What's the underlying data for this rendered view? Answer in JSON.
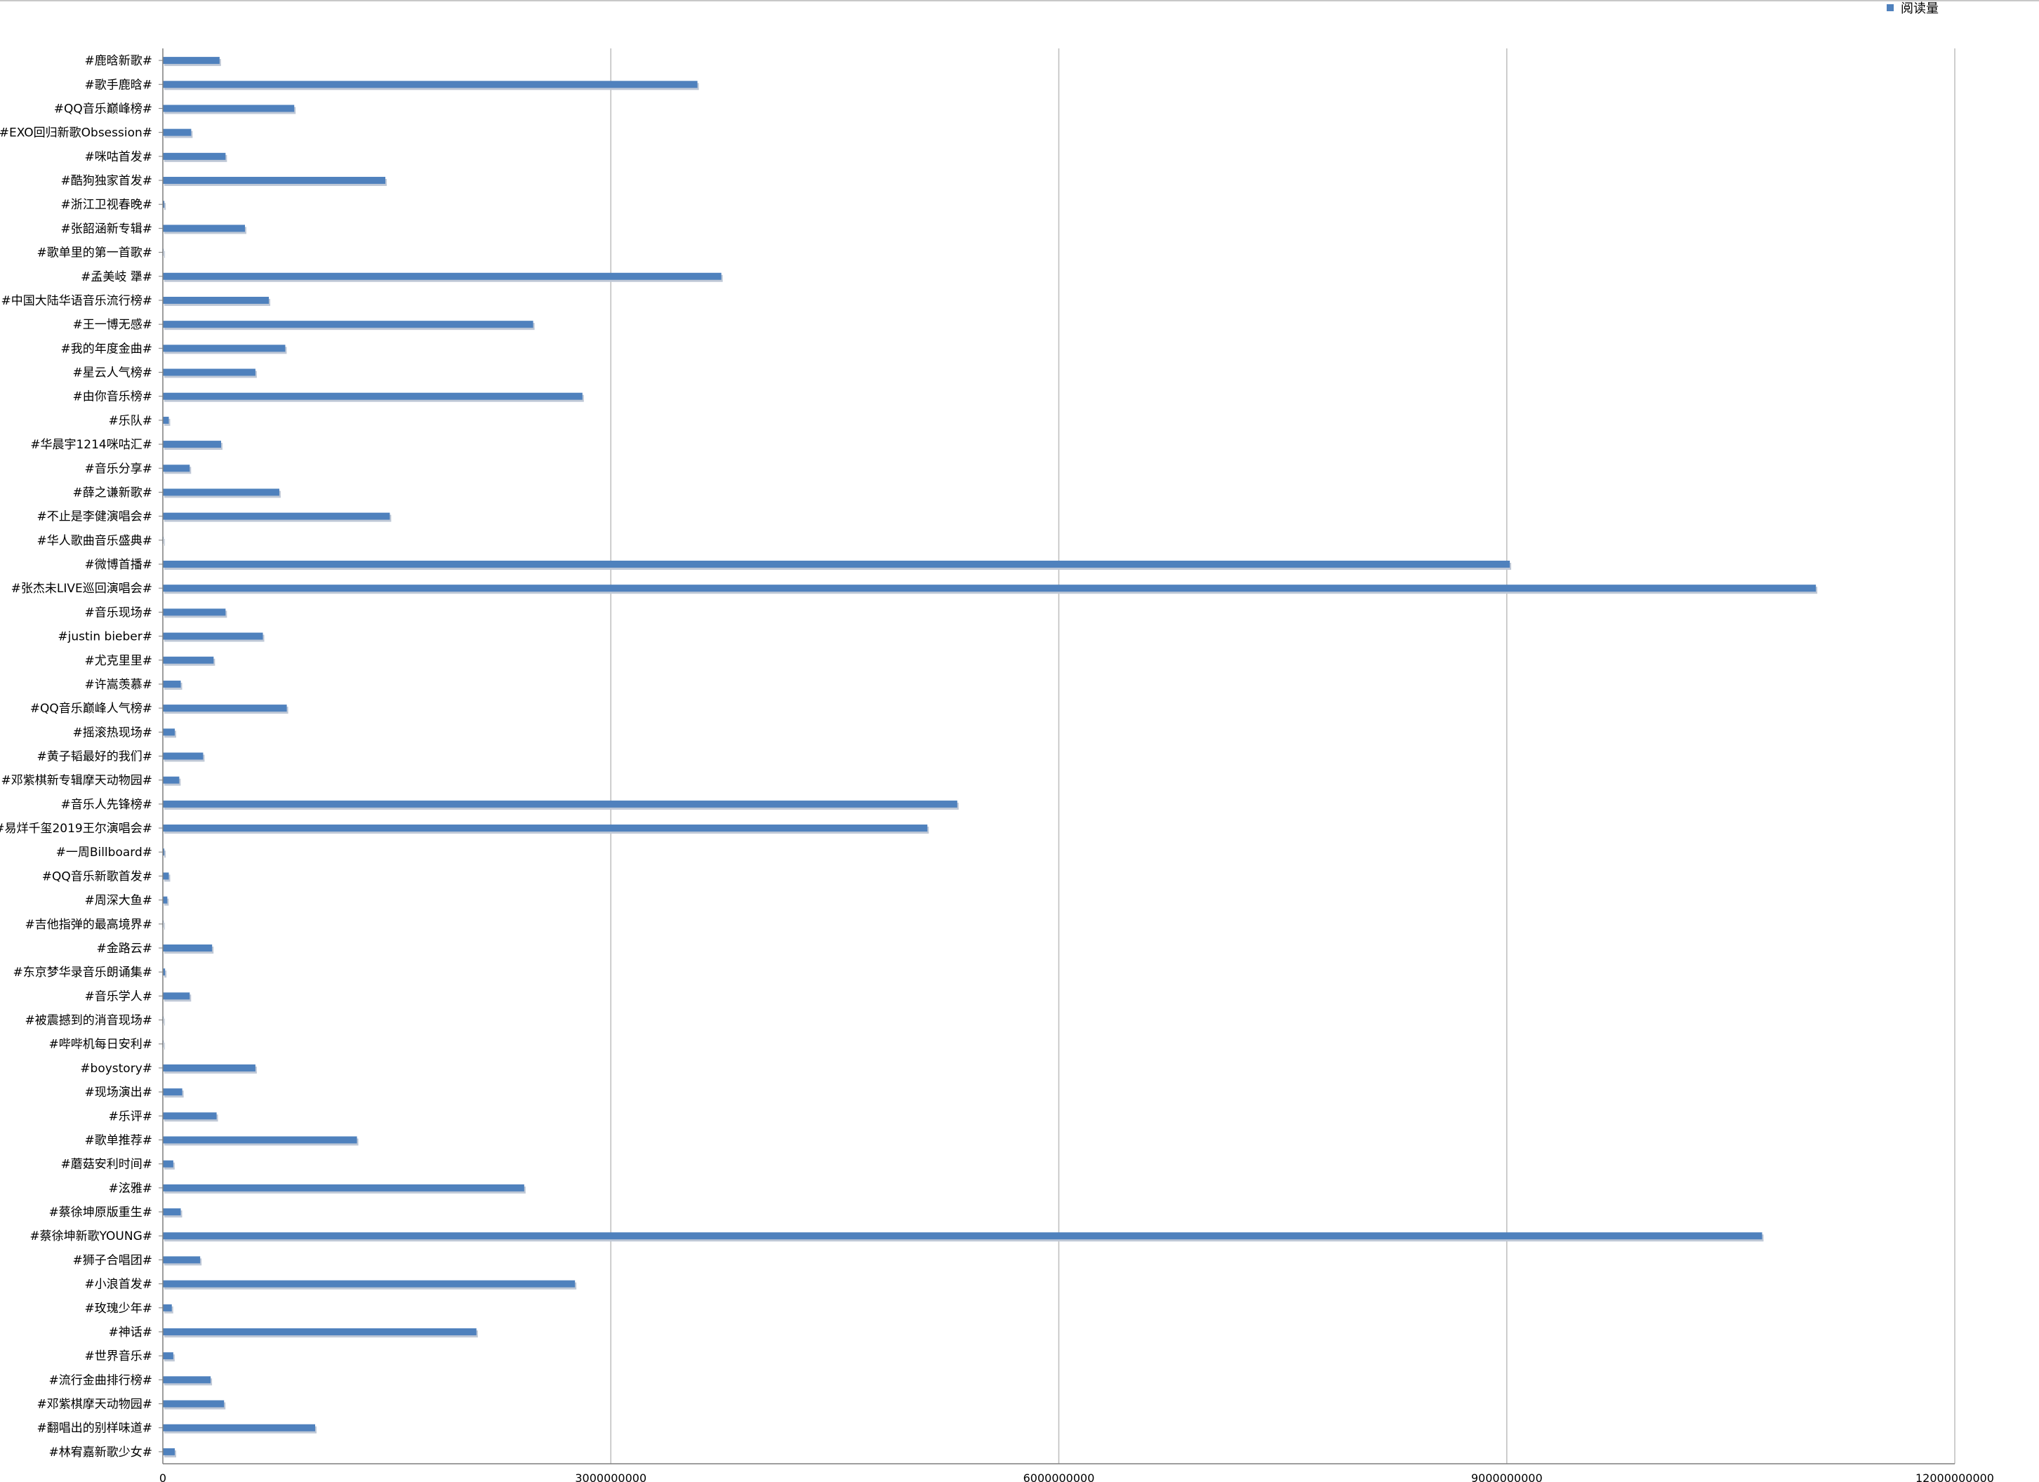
{
  "chart_data": {
    "type": "bar",
    "orientation": "horizontal",
    "title": "",
    "xlabel": "",
    "ylabel": "",
    "xlim": [
      0,
      12000000000
    ],
    "x_ticks": [
      "0",
      "3000000000",
      "6000000000",
      "9000000000",
      "12000000000"
    ],
    "grid": true,
    "legend_position": "top-right",
    "colors": {
      "bar": "#4f81bd",
      "shadow": "#bfc8d6",
      "grid": "#bdbdbd",
      "axis": "#7f7f7f"
    },
    "categories": [
      "#鹿晗新歌#",
      "#歌手鹿晗#",
      "#QQ音乐巅峰榜#",
      "#EXO回归新歌Obsession#",
      "#咪咕首发#",
      "#酷狗独家首发#",
      "#浙江卫视春晚#",
      "#张韶涵新专辑#",
      "#歌单里的第一首歌#",
      "#孟美岐 犟#",
      "#中国大陆华语音乐流行榜#",
      "#王一博无感#",
      "#我的年度金曲#",
      "#星云人气榜#",
      "#由你音乐榜#",
      "#乐队#",
      "#华晨宇1214咪咕汇#",
      "#音乐分享#",
      "#薛之谦新歌#",
      "#不止是李健演唱会#",
      "#华人歌曲音乐盛典#",
      "#微博首播#",
      "#张杰未LIVE巡回演唱会#",
      "#音乐现场#",
      "#justin bieber#",
      "#尤克里里#",
      "#许嵩羡慕#",
      "#QQ音乐巅峰人气榜#",
      "#摇滚热现场#",
      "#黄子韬最好的我们#",
      "#邓紫棋新专辑摩天动物园#",
      "#音乐人先锋榜#",
      "#易烊千玺2019王尔演唱会#",
      "#一周Billboard#",
      "#QQ音乐新歌首发#",
      "#周深大鱼#",
      "#吉他指弹的最高境界#",
      "#金路云#",
      "#东京梦华录音乐朗诵集#",
      "#音乐学人#",
      "#被震撼到的消音现场#",
      "#哔哔机每日安利#",
      "#boystory#",
      "#现场演出#",
      "#乐评#",
      "#歌单推荐#",
      "#蘑菇安利时间#",
      "#泫雅#",
      "#蔡徐坤原版重生#",
      "#蔡徐坤新歌YOUNG#",
      "#狮子合唱团#",
      "#小浪首发#",
      "#玫瑰少年#",
      "#神话#",
      "#世界音乐#",
      "#流行金曲排行榜#",
      "#邓紫棋摩天动物园#",
      "#翻唱出的别样味道#",
      "#林宥嘉新歌少女#"
    ],
    "series": [
      {
        "name": "阅读量",
        "values": [
          380000000,
          3580000000,
          880000000,
          190000000,
          420000000,
          1490000000,
          10000000,
          550000000,
          5000000,
          3740000000,
          710000000,
          2480000000,
          820000000,
          620000000,
          2810000000,
          40000000,
          390000000,
          180000000,
          780000000,
          1520000000,
          2000000,
          9020000000,
          11070000000,
          420000000,
          670000000,
          340000000,
          120000000,
          830000000,
          80000000,
          270000000,
          110000000,
          5320000000,
          5120000000,
          10000000,
          40000000,
          30000000,
          3000000,
          330000000,
          15000000,
          180000000,
          2000000,
          3000000,
          620000000,
          130000000,
          360000000,
          1300000000,
          70000000,
          2420000000,
          120000000,
          10710000000,
          250000000,
          2760000000,
          60000000,
          2100000000,
          70000000,
          320000000,
          410000000,
          1020000000,
          80000000
        ]
      }
    ]
  }
}
